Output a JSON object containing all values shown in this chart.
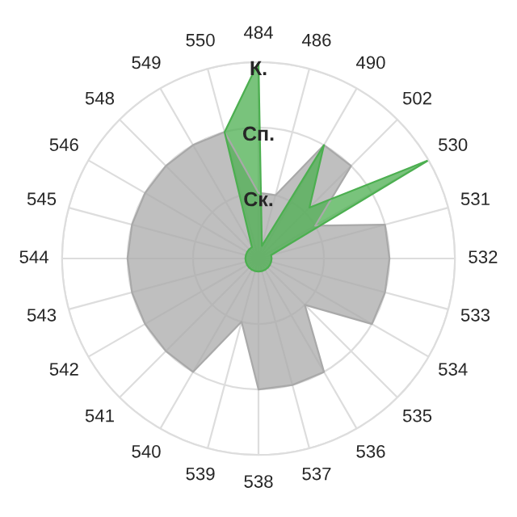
{
  "chart_data": {
    "type": "radar",
    "categories": [
      "484",
      "486",
      "490",
      "502",
      "530",
      "531",
      "532",
      "533",
      "534",
      "535",
      "536",
      "537",
      "538",
      "539",
      "540",
      "541",
      "542",
      "543",
      "544",
      "545",
      "546",
      "548",
      "549",
      "550"
    ],
    "ylim": [
      0,
      3
    ],
    "yticks": [
      {
        "value": 1,
        "label": "Ск."
      },
      {
        "value": 2,
        "label": "Сп."
      },
      {
        "value": 3,
        "label": "К."
      }
    ],
    "grid": true,
    "series": [
      {
        "color": "#a9a9a9",
        "values": [
          1,
          1,
          2,
          2,
          1,
          2,
          2,
          2,
          2,
          1,
          2,
          2,
          2,
          1,
          2,
          2,
          2,
          2,
          2,
          2,
          2,
          2,
          2,
          2
        ]
      },
      {
        "color": "#4caf50",
        "values": [
          3,
          0.2,
          2,
          1.1,
          3,
          0.2,
          0.2,
          0.2,
          0.2,
          0.2,
          0.2,
          0.2,
          0.2,
          0.2,
          0.2,
          0.2,
          0.2,
          0.2,
          0.2,
          0.2,
          0.2,
          0.2,
          0.2,
          2
        ]
      }
    ]
  }
}
